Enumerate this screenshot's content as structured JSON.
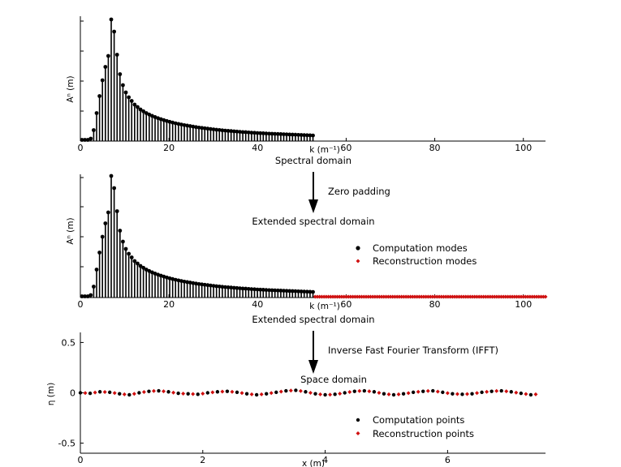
{
  "panels": {
    "top": {
      "ylabel": "Aⁿ (m)",
      "xlabel": "k (m⁻¹)"
    },
    "mid": {
      "ylabel": "Aⁿ (m)",
      "xlabel": "k (m⁻¹)"
    },
    "bottom": {
      "ylabel": "η (m)",
      "xlabel": "x (m)"
    }
  },
  "annotations": {
    "spectral_domain": "Spectral  domain",
    "zero_padding": "Zero padding",
    "extended_spectral_domain_1": "Extended spectral domain",
    "extended_spectral_domain_2": "Extended spectral domain",
    "ifft": "Inverse Fast Fourier Transform (IFFT)",
    "space_domain": "Space domain"
  },
  "legends": {
    "modes": {
      "computation": "Computation modes",
      "reconstruction": "Reconstruction modes"
    },
    "points": {
      "computation": "Computation points",
      "reconstruction": "Reconstruction points"
    }
  },
  "colors": {
    "computation": "#000000",
    "reconstruction": "#d01010",
    "axis": "#000000"
  },
  "chart_data": [
    {
      "type": "scatter",
      "name": "spectral-domain",
      "xlabel": "k (m⁻¹)",
      "ylabel": "Aⁿ (m)",
      "xlim": [
        0,
        105
      ],
      "ylim": [
        0,
        1
      ],
      "x_ticks": [
        0,
        20,
        40,
        60,
        80,
        100
      ],
      "series": [
        {
          "name": "",
          "kind": "stem",
          "x_start": 0,
          "x_step": 1,
          "values": [
            0.01,
            0.01,
            0.01,
            0.02,
            0.09,
            0.23,
            0.37,
            0.5,
            0.61,
            0.7,
            1.0,
            0.9,
            0.71,
            0.55,
            0.46,
            0.4,
            0.36,
            0.33,
            0.3,
            0.28,
            0.26,
            0.245,
            0.23,
            0.218,
            0.207,
            0.197,
            0.188,
            0.18,
            0.172,
            0.165,
            0.158,
            0.152,
            0.146,
            0.141,
            0.136,
            0.131,
            0.127,
            0.123,
            0.119,
            0.115,
            0.111,
            0.108,
            0.105,
            0.102,
            0.099,
            0.096,
            0.093,
            0.091,
            0.088,
            0.086,
            0.084,
            0.082,
            0.08,
            0.078,
            0.076,
            0.074,
            0.073,
            0.071,
            0.069,
            0.068,
            0.066,
            0.065,
            0.064,
            0.062,
            0.061,
            0.06,
            0.059,
            0.058,
            0.057,
            0.056,
            0.055,
            0.054,
            0.053,
            0.052,
            0.051,
            0.05,
            0.049,
            0.048,
            0.047,
            0.046
          ]
        }
      ]
    },
    {
      "type": "scatter",
      "name": "extended-spectral-domain",
      "xlabel": "k (m⁻¹)",
      "ylabel": "Aⁿ (m)",
      "xlim": [
        0,
        105
      ],
      "ylim": [
        0,
        1
      ],
      "x_ticks": [
        0,
        20,
        40,
        60,
        80,
        100
      ],
      "series": [
        {
          "name": "Computation modes",
          "kind": "stem",
          "x_start": 0,
          "x_step": 1,
          "values": [
            0.01,
            0.01,
            0.01,
            0.02,
            0.09,
            0.23,
            0.37,
            0.5,
            0.61,
            0.7,
            1.0,
            0.9,
            0.71,
            0.55,
            0.46,
            0.4,
            0.36,
            0.33,
            0.3,
            0.28,
            0.26,
            0.245,
            0.23,
            0.218,
            0.207,
            0.197,
            0.188,
            0.18,
            0.172,
            0.165,
            0.158,
            0.152,
            0.146,
            0.141,
            0.136,
            0.131,
            0.127,
            0.123,
            0.119,
            0.115,
            0.111,
            0.108,
            0.105,
            0.102,
            0.099,
            0.096,
            0.093,
            0.091,
            0.088,
            0.086,
            0.084,
            0.082,
            0.08,
            0.078,
            0.076,
            0.074,
            0.073,
            0.071,
            0.069,
            0.068,
            0.066,
            0.065,
            0.064,
            0.062,
            0.061,
            0.06,
            0.059,
            0.058,
            0.057,
            0.056,
            0.055,
            0.054,
            0.053,
            0.052,
            0.051,
            0.05,
            0.049,
            0.048,
            0.047,
            0.046
          ]
        },
        {
          "name": "Reconstruction modes",
          "kind": "points",
          "x_start": 53,
          "x_end": 105,
          "x_step": 1,
          "value": 0
        }
      ]
    },
    {
      "type": "scatter",
      "name": "space-domain",
      "xlabel": "x (m)",
      "ylabel": "η (m)",
      "xlim": [
        0,
        7.6
      ],
      "ylim": [
        -0.6,
        0.6
      ],
      "x_ticks": [
        0,
        2,
        4,
        6
      ],
      "y_ticks": [
        -0.5,
        0,
        0.5
      ],
      "series": [
        {
          "name": "Computation points",
          "x_start": 0.0,
          "x_step": 0.16,
          "values": [
            0.0,
            -0.005,
            0.01,
            0.005,
            -0.01,
            -0.02,
            0.0,
            0.015,
            0.02,
            0.01,
            -0.005,
            -0.01,
            -0.015,
            0.0,
            0.01,
            0.015,
            0.005,
            -0.01,
            -0.02,
            -0.01,
            0.005,
            0.02,
            0.025,
            0.01,
            -0.01,
            -0.02,
            -0.015,
            0.0,
            0.015,
            0.02,
            0.01,
            -0.01,
            -0.02,
            -0.01,
            0.005,
            0.015,
            0.02,
            0.005,
            -0.01,
            -0.015,
            -0.01,
            0.005,
            0.015,
            0.02,
            0.01,
            -0.005,
            -0.02
          ]
        },
        {
          "name": "Reconstruction points",
          "x_start": 0.08,
          "x_step": 0.16,
          "values": [
            -0.002,
            0.003,
            0.008,
            -0.002,
            -0.015,
            -0.01,
            0.008,
            0.018,
            0.015,
            0.002,
            -0.008,
            -0.012,
            -0.008,
            0.005,
            0.012,
            0.01,
            -0.002,
            -0.015,
            -0.015,
            -0.002,
            0.012,
            0.022,
            0.018,
            0.0,
            -0.015,
            -0.018,
            -0.008,
            0.008,
            0.018,
            0.015,
            0.0,
            -0.015,
            -0.015,
            -0.003,
            0.01,
            0.018,
            0.012,
            -0.003,
            -0.012,
            -0.012,
            -0.002,
            0.01,
            0.018,
            0.015,
            0.002,
            -0.012,
            -0.015
          ]
        }
      ]
    }
  ]
}
